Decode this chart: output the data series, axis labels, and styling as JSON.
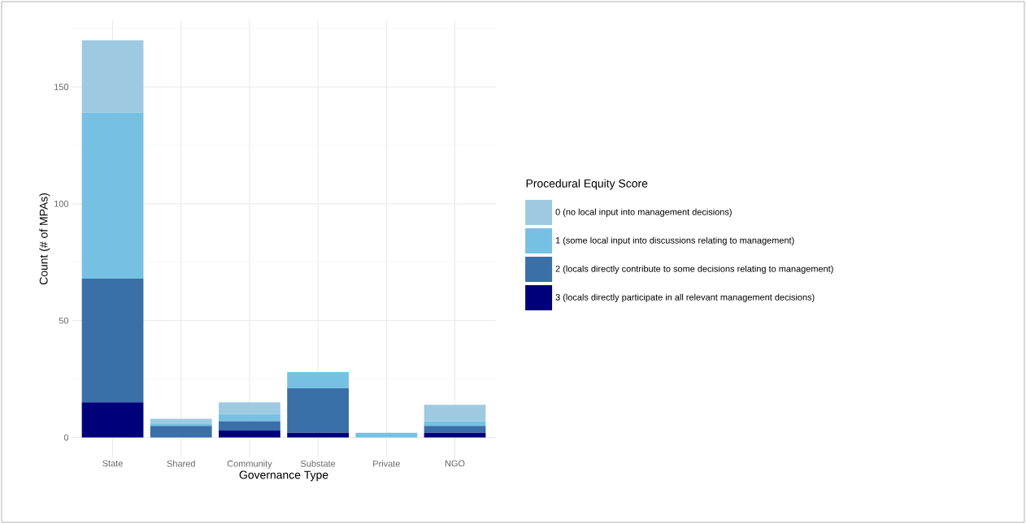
{
  "chart_data": {
    "type": "bar",
    "stacked": true,
    "xlabel": "Governance Type",
    "ylabel": "Count (# of MPAs)",
    "legend_title": "Procedural Equity Score",
    "categories": [
      "State",
      "Shared",
      "Community",
      "Substate",
      "Private",
      "NGO"
    ],
    "series": [
      {
        "name": "3 (locals directly participate in all relevant management decisions)",
        "color": "#00007a",
        "values": [
          15,
          0,
          3,
          2,
          0,
          2
        ]
      },
      {
        "name": "2 (locals directly contribute to some decisions relating to management)",
        "color": "#3a6fa8",
        "values": [
          53,
          5,
          4,
          19,
          0,
          3
        ]
      },
      {
        "name": "1 (some local input into discussions relating to management)",
        "color": "#76c1e3",
        "values": [
          71,
          1,
          3,
          7,
          2,
          2
        ]
      },
      {
        "name": "0 (no local input into management decisions)",
        "color": "#9ecae1",
        "values": [
          31,
          2,
          5,
          0,
          0,
          7
        ]
      }
    ],
    "ylim": [
      -8.5,
      178.5
    ],
    "yticks": [
      0,
      50,
      100,
      150
    ],
    "grid": true,
    "legend": "right"
  }
}
